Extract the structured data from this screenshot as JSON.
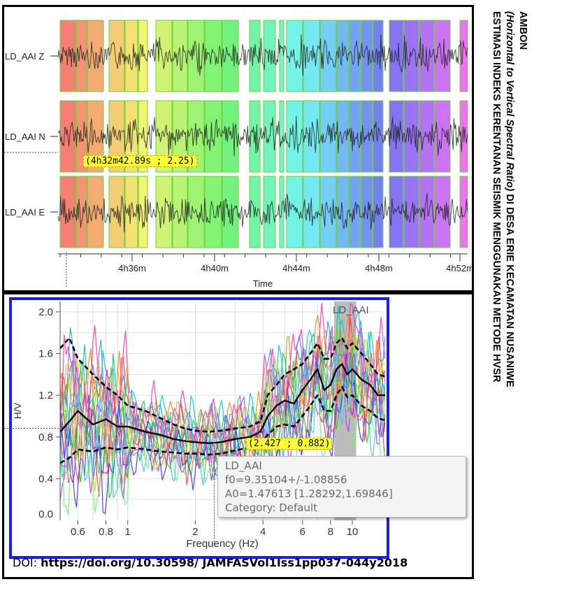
{
  "side_title": {
    "line1": "ESTIMASI INDEKS KERENTANAN SEISMIK MENGGUNAKAN METODE HVSR",
    "line2_italic": "(Horizontal to Vertical Spectral Ratio)",
    "line2_rest": " DI DESA ERIE KECAMATAN NUSANIWE",
    "line3": "AMBON"
  },
  "doi": {
    "prefix": "DOI: ",
    "link": "https://doi.org/10.30598/ JAMFASVol1Iss1pp037-044y2018"
  },
  "colors": {
    "frame_blue": "#1a1aff",
    "badge_yellow": "#ffff33",
    "signal": "#222222"
  },
  "chart_data": [
    {
      "type": "line",
      "xlabel": "Time",
      "x_ticks": [
        "4h36m",
        "4h40m",
        "4h44m",
        "4h48m",
        "4h52m"
      ],
      "traces": [
        "LD_AAI Z",
        "LD_AAI N",
        "LD_AAI E"
      ],
      "cursor_label": "(4h32m42.89s ; 2.25)"
    },
    {
      "type": "line",
      "title": "LD_AAI",
      "xlabel": "Frequency (Hz)",
      "ylabel": "H/V",
      "xscale": "log",
      "xlim": [
        0.5,
        14
      ],
      "ylim": [
        0.0,
        2.1
      ],
      "x_ticks": [
        "0.6",
        "0.8",
        "1",
        "2",
        "4",
        "6",
        "8",
        "10"
      ],
      "y_ticks": [
        "0.4",
        "0.8",
        "1.2",
        "1.6",
        "2.0"
      ],
      "y_tick_partial": "0.0",
      "cursor_label": "(2.427 ; 0.882)",
      "f0_band": [
        8.3,
        10.4
      ],
      "mean_curve": {
        "x": [
          0.5,
          0.55,
          0.6,
          0.7,
          0.8,
          0.9,
          1.0,
          1.2,
          1.4,
          1.6,
          1.8,
          2.0,
          2.3,
          2.6,
          3.0,
          3.5,
          3.9,
          4.2,
          4.6,
          5.0,
          5.5,
          6.0,
          6.5,
          7.0,
          7.5,
          8.0,
          8.5,
          9.0,
          9.5,
          10,
          11,
          12,
          13,
          14
        ],
        "y": [
          0.85,
          0.95,
          1.05,
          0.92,
          0.97,
          0.9,
          0.9,
          0.85,
          0.82,
          0.78,
          0.76,
          0.75,
          0.74,
          0.75,
          0.78,
          0.8,
          0.85,
          1.0,
          1.1,
          1.15,
          1.12,
          1.25,
          1.35,
          1.45,
          1.25,
          1.3,
          1.45,
          1.5,
          1.4,
          1.45,
          1.35,
          1.3,
          1.2,
          1.2
        ]
      },
      "std_upper": {
        "x": [
          0.5,
          0.55,
          0.6,
          0.7,
          0.8,
          0.9,
          1.0,
          1.2,
          1.4,
          1.6,
          1.8,
          2.0,
          2.3,
          2.6,
          3.0,
          3.5,
          3.9,
          4.2,
          4.6,
          5.0,
          5.5,
          6.0,
          6.5,
          7.0,
          7.5,
          8.0,
          8.5,
          9.0,
          9.5,
          10,
          11,
          12,
          13,
          14
        ],
        "y": [
          1.65,
          1.75,
          1.55,
          1.4,
          1.28,
          1.2,
          1.1,
          1.05,
          0.98,
          0.92,
          0.88,
          0.86,
          0.85,
          0.86,
          0.88,
          0.9,
          0.95,
          1.2,
          1.3,
          1.4,
          1.45,
          1.5,
          1.6,
          1.7,
          1.55,
          1.55,
          1.7,
          1.75,
          1.65,
          1.7,
          1.6,
          1.5,
          1.4,
          1.38
        ]
      },
      "std_lower": {
        "x": [
          0.5,
          0.55,
          0.6,
          0.7,
          0.8,
          0.9,
          1.0,
          1.2,
          1.4,
          1.6,
          1.8,
          2.0,
          2.3,
          2.6,
          3.0,
          3.5,
          3.9,
          4.2,
          4.6,
          5.0,
          5.5,
          6.0,
          6.5,
          7.0,
          7.5,
          8.0,
          8.5,
          9.0,
          9.5,
          10,
          11,
          12,
          13,
          14
        ],
        "y": [
          0.55,
          0.6,
          0.68,
          0.66,
          0.7,
          0.68,
          0.7,
          0.68,
          0.66,
          0.65,
          0.64,
          0.64,
          0.63,
          0.64,
          0.67,
          0.7,
          0.74,
          0.82,
          0.9,
          0.92,
          0.9,
          1.0,
          1.1,
          1.2,
          1.05,
          1.05,
          1.2,
          1.28,
          1.18,
          1.2,
          1.1,
          1.05,
          0.98,
          0.96
        ]
      },
      "window_curve_colors": [
        "#ff3333",
        "#ff8800",
        "#e6c800",
        "#99dd00",
        "#22cc22",
        "#00cc88",
        "#00cccc",
        "#3399ff",
        "#3333ff",
        "#8833ff",
        "#cc33ff",
        "#ff33cc",
        "#ff3366",
        "#66ff66",
        "#33ccff",
        "#ffaa33"
      ],
      "tooltip": {
        "name": "LD_AAI",
        "f0": "f0=9.35104+/-1.08856",
        "a0": "A0=1.47613 [1.28292,1.69846]",
        "category": "Category: Default"
      }
    }
  ]
}
